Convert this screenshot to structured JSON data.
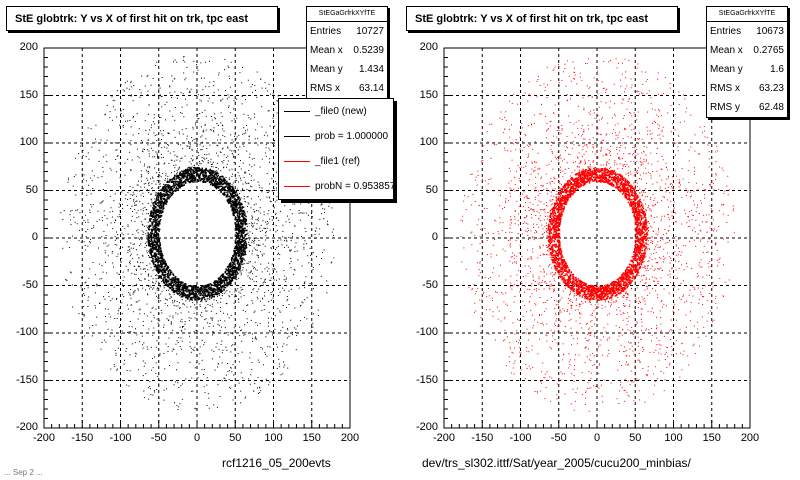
{
  "chart_data": [
    {
      "type": "scatter",
      "title": "StE globtrk: Y vs X of first hit on trk, tpc east",
      "xlabel": "rcf1216_05_200evts",
      "ylabel": "",
      "xlim": [
        -200,
        200
      ],
      "ylim": [
        -200,
        200
      ],
      "xticks": [
        "-200",
        "-150",
        "-100",
        "-50",
        "0",
        "50",
        "100",
        "150",
        "200"
      ],
      "yticks": [
        "200",
        "150",
        "100",
        "50",
        "0",
        "-50",
        "-100",
        "-150",
        "-200"
      ],
      "grid": true,
      "color": "#000000",
      "stats": {
        "name": "StEGaGrfrkXYfTE",
        "rows": [
          {
            "label": "Entries",
            "value": "10727"
          },
          {
            "label": "Mean x",
            "value": "0.5239"
          },
          {
            "label": "Mean y",
            "value": "1.434"
          },
          {
            "label": "RMS x",
            "value": "63.14"
          }
        ]
      },
      "legend": {
        "placement": "top-right",
        "entries": [
          {
            "label": "_file0 (new)",
            "color": "#000000"
          },
          {
            "label": "prob = 1.000000",
            "color": "#000000"
          },
          {
            "label": "_file1 (ref)",
            "color": "#ff0000"
          },
          {
            "label": "probN = 0.953857",
            "color": "#ff0000"
          }
        ]
      },
      "distribution": {
        "ring": {
          "inner_radius_x": 50,
          "inner_radius_y": 55,
          "thickness": 15,
          "center": [
            0,
            5
          ]
        },
        "halo": {
          "max_radius": 180
        }
      }
    },
    {
      "type": "scatter",
      "title": "StE globtrk: Y vs X of first hit on trk, tpc east",
      "xlabel": "dev/trs_sl302.ittf/Sat/year_2005/cucu200_minbias/",
      "ylabel": "",
      "xlim": [
        -200,
        200
      ],
      "ylim": [
        -200,
        200
      ],
      "xticks": [
        "-200",
        "-150",
        "-100",
        "-50",
        "0",
        "50",
        "100",
        "150",
        "200"
      ],
      "yticks": [
        "200",
        "150",
        "100",
        "50",
        "0",
        "-50",
        "-100",
        "-150",
        "-200"
      ],
      "grid": true,
      "color": "#ff0000",
      "stats": {
        "name": "StEGaGrfrkXYfTE",
        "rows": [
          {
            "label": "Entries",
            "value": "10673"
          },
          {
            "label": "Mean x",
            "value": "0.2765"
          },
          {
            "label": "Mean y",
            "value": "1.6"
          },
          {
            "label": "RMS x",
            "value": "63.23"
          },
          {
            "label": "RMS y",
            "value": "62.48"
          }
        ]
      },
      "distribution": {
        "ring": {
          "inner_radius_x": 50,
          "inner_radius_y": 55,
          "thickness": 15,
          "center": [
            0,
            5
          ]
        },
        "halo": {
          "max_radius": 180
        }
      }
    }
  ],
  "footer": "... Sep 2 ..."
}
